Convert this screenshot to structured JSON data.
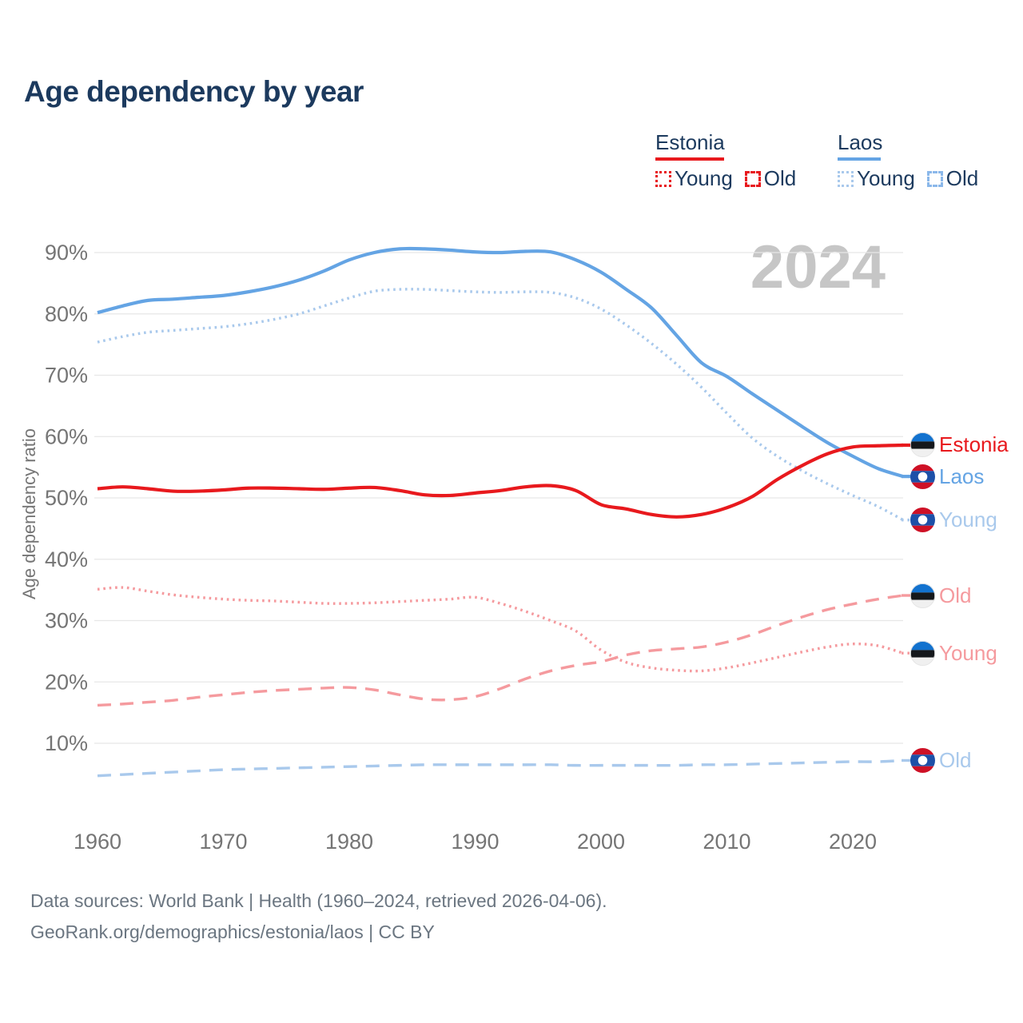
{
  "title": "Age dependency by year",
  "watermark": "2024",
  "legend": {
    "estonia": {
      "label": "Estonia",
      "young": "Young",
      "old": "Old"
    },
    "laos": {
      "label": "Laos",
      "young": "Young",
      "old": "Old"
    }
  },
  "y_axis": {
    "title": "Age dependency ratio",
    "ticks": [
      90,
      80,
      70,
      60,
      50,
      40,
      30,
      20,
      10
    ],
    "unit": "%"
  },
  "x_axis": {
    "ticks": [
      1960,
      1970,
      1980,
      1990,
      2000,
      2010,
      2020
    ]
  },
  "footer": {
    "line1": "Data sources: World Bank | Health (1960–2024, retrieved 2026-04-06).",
    "line2": "GeoRank.org/demographics/estonia/laos | CC BY"
  },
  "colors": {
    "estonia_solid": "#e8191d",
    "estonia_light": "#f59a9e",
    "laos_solid": "#64a4e4",
    "laos_light": "#a9c9ec",
    "navy": "#1c3a5e",
    "grid": "#e7e7e7",
    "tick": "#757575",
    "watermark_gray": "#c6c6c6",
    "footer_gray": "#6b7681"
  },
  "end_labels": [
    {
      "text": "Estonia",
      "flag": "estonia",
      "series": "estonia_total",
      "color": "#e8191d"
    },
    {
      "text": "Laos",
      "flag": "laos",
      "series": "laos_total",
      "color": "#64a4e4"
    },
    {
      "text": "Young",
      "flag": "laos",
      "series": "laos_young",
      "color": "#a9c9ec"
    },
    {
      "text": "Old",
      "flag": "estonia",
      "series": "estonia_old",
      "color": "#f59a9e"
    },
    {
      "text": "Young",
      "flag": "estonia",
      "series": "estonia_young",
      "color": "#f59a9e"
    },
    {
      "text": "Old",
      "flag": "laos",
      "series": "laos_old",
      "color": "#a9c9ec"
    }
  ],
  "chart_data": {
    "type": "line",
    "xlabel": "",
    "ylabel": "Age dependency ratio",
    "ylim": [
      0,
      95
    ],
    "xlim": [
      1960,
      2024
    ],
    "grid": true,
    "x": [
      1960,
      1962,
      1964,
      1966,
      1968,
      1970,
      1972,
      1974,
      1976,
      1978,
      1980,
      1982,
      1984,
      1986,
      1988,
      1990,
      1992,
      1994,
      1996,
      1998,
      2000,
      2002,
      2004,
      2006,
      2008,
      2010,
      2012,
      2014,
      2016,
      2018,
      2020,
      2022,
      2024
    ],
    "series": [
      {
        "id": "laos_old",
        "name": "Laos Old",
        "country": "Laos",
        "group": "Old",
        "style": "dashed",
        "color": "#a9c9ec",
        "values": [
          4.7,
          4.9,
          5.1,
          5.3,
          5.5,
          5.7,
          5.8,
          5.9,
          6.0,
          6.1,
          6.2,
          6.3,
          6.4,
          6.5,
          6.5,
          6.5,
          6.5,
          6.5,
          6.5,
          6.4,
          6.4,
          6.4,
          6.4,
          6.4,
          6.5,
          6.5,
          6.6,
          6.7,
          6.8,
          6.9,
          7.0,
          7.0,
          7.2
        ]
      },
      {
        "id": "estonia_old",
        "name": "Estonia Old",
        "country": "Estonia",
        "group": "Old",
        "style": "dashed",
        "color": "#f59a9e",
        "values": [
          16.2,
          16.4,
          16.7,
          17.0,
          17.5,
          17.9,
          18.3,
          18.6,
          18.8,
          19.0,
          19.1,
          18.7,
          17.9,
          17.2,
          17.1,
          17.6,
          18.9,
          20.5,
          21.8,
          22.7,
          23.3,
          24.4,
          25.1,
          25.4,
          25.7,
          26.5,
          27.7,
          29.2,
          30.6,
          31.8,
          32.7,
          33.5,
          34.1
        ]
      },
      {
        "id": "laos_young",
        "name": "Laos Young",
        "country": "Laos",
        "group": "Young",
        "style": "dotted",
        "color": "#a9c9ec",
        "values": [
          75.4,
          76.3,
          77.0,
          77.3,
          77.6,
          77.9,
          78.4,
          79.1,
          80.0,
          81.3,
          82.6,
          83.7,
          84.0,
          84.0,
          83.8,
          83.6,
          83.5,
          83.6,
          83.5,
          82.6,
          80.8,
          78.2,
          75.2,
          71.8,
          68.0,
          63.8,
          59.8,
          56.8,
          54.4,
          52.3,
          50.4,
          48.6,
          46.4
        ]
      },
      {
        "id": "estonia_young",
        "name": "Estonia Young",
        "country": "Estonia",
        "group": "Young",
        "style": "dotted",
        "color": "#f59a9e",
        "values": [
          35.1,
          35.4,
          34.8,
          34.2,
          33.8,
          33.5,
          33.3,
          33.2,
          33.0,
          32.8,
          32.8,
          32.9,
          33.1,
          33.3,
          33.5,
          33.8,
          32.8,
          31.5,
          30.0,
          28.3,
          25.2,
          23.2,
          22.3,
          21.9,
          21.8,
          22.3,
          23.1,
          24.0,
          24.9,
          25.7,
          26.2,
          25.9,
          24.7
        ]
      },
      {
        "id": "laos_total",
        "name": "Laos",
        "country": "Laos",
        "group": "Total",
        "style": "solid",
        "color": "#64a4e4",
        "values": [
          80.2,
          81.3,
          82.2,
          82.4,
          82.7,
          83.0,
          83.6,
          84.4,
          85.5,
          87.0,
          88.8,
          90.0,
          90.6,
          90.6,
          90.4,
          90.1,
          90.0,
          90.2,
          90.1,
          88.8,
          86.8,
          84.0,
          81.0,
          76.5,
          72.0,
          69.8,
          67.0,
          64.3,
          61.6,
          59.0,
          56.8,
          54.8,
          53.5
        ]
      },
      {
        "id": "estonia_total",
        "name": "Estonia",
        "country": "Estonia",
        "group": "Total",
        "style": "solid",
        "color": "#e8191d",
        "values": [
          51.5,
          51.8,
          51.5,
          51.1,
          51.1,
          51.3,
          51.6,
          51.6,
          51.5,
          51.4,
          51.6,
          51.7,
          51.2,
          50.5,
          50.4,
          50.8,
          51.2,
          51.8,
          52.0,
          51.2,
          48.9,
          48.2,
          47.3,
          46.9,
          47.3,
          48.4,
          50.2,
          53.0,
          55.3,
          57.2,
          58.3,
          58.5,
          58.6
        ]
      }
    ]
  }
}
